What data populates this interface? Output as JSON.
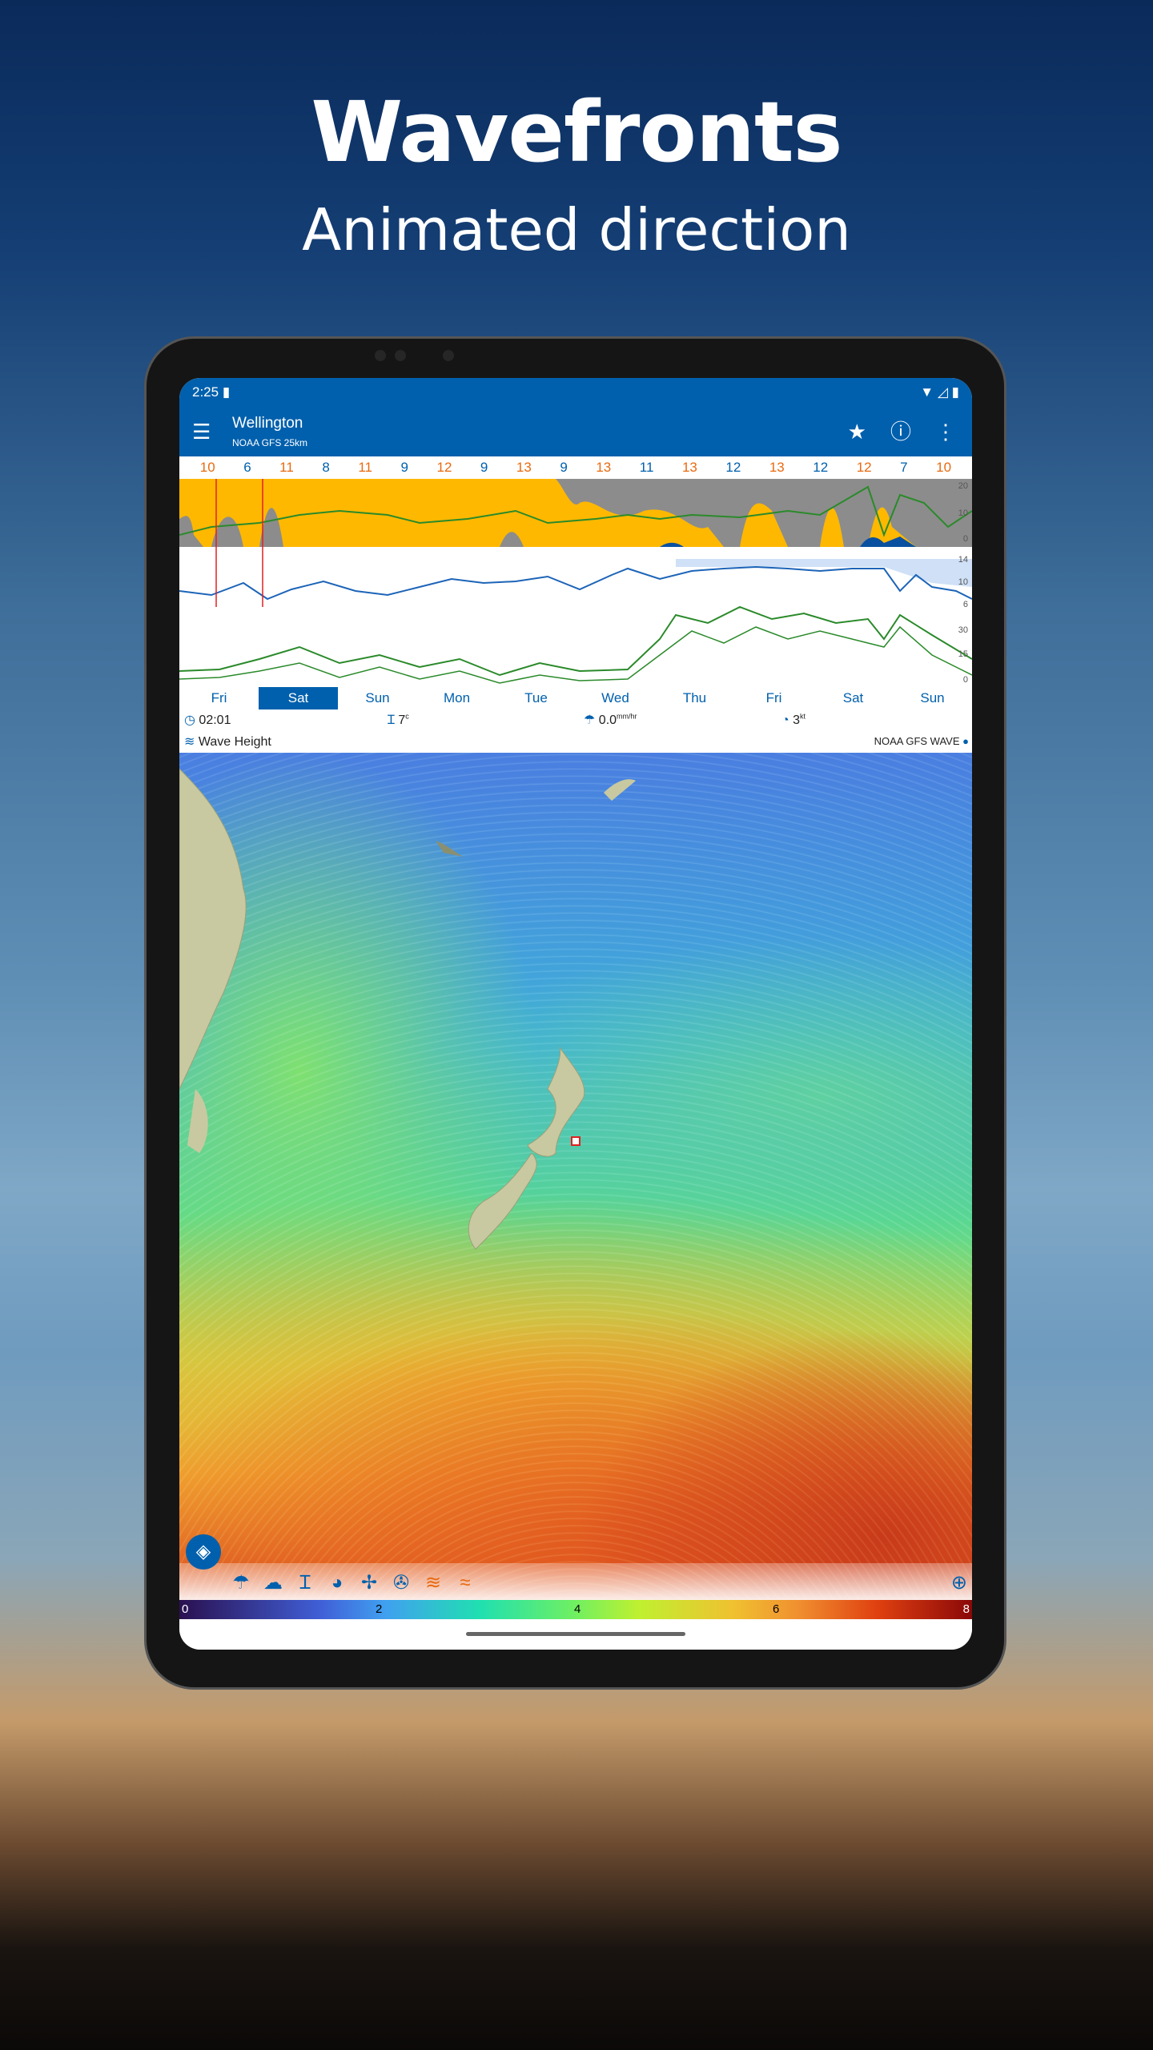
{
  "hero": {
    "title": "Wavefronts",
    "subtitle": "Animated direction"
  },
  "status": {
    "time": "2:25"
  },
  "appbar": {
    "location": "Wellington",
    "model": "NOAA GFS 25km"
  },
  "hours": [
    {
      "v": "10",
      "c": "#e86a10"
    },
    {
      "v": "6",
      "c": "#0160ad"
    },
    {
      "v": "11",
      "c": "#e86a10"
    },
    {
      "v": "8",
      "c": "#0160ad"
    },
    {
      "v": "11",
      "c": "#e86a10"
    },
    {
      "v": "9",
      "c": "#0160ad"
    },
    {
      "v": "12",
      "c": "#e86a10"
    },
    {
      "v": "9",
      "c": "#0160ad"
    },
    {
      "v": "13",
      "c": "#e86a10"
    },
    {
      "v": "9",
      "c": "#0160ad"
    },
    {
      "v": "13",
      "c": "#e86a10"
    },
    {
      "v": "11",
      "c": "#0160ad"
    },
    {
      "v": "13",
      "c": "#e86a10"
    },
    {
      "v": "12",
      "c": "#0160ad"
    },
    {
      "v": "13",
      "c": "#e86a10"
    },
    {
      "v": "12",
      "c": "#0160ad"
    },
    {
      "v": "12",
      "c": "#e86a10"
    },
    {
      "v": "7",
      "c": "#0160ad"
    },
    {
      "v": "10",
      "c": "#e86a10"
    }
  ],
  "chart_axes": {
    "rain": [
      "20",
      "10",
      "0"
    ],
    "temp": [
      "14",
      "10",
      "6"
    ],
    "wind": [
      "30",
      "15",
      "0"
    ]
  },
  "days": [
    "Fri",
    "Sat",
    "Sun",
    "Mon",
    "Tue",
    "Wed",
    "Thu",
    "Fri",
    "Sat",
    "Sun"
  ],
  "selected_day": 1,
  "info": {
    "time": "02:01",
    "temp": "7",
    "temp_unit": "c",
    "rain": "0.0",
    "rain_unit": "mm/hr",
    "wind": "3",
    "wind_unit": "kt"
  },
  "layer": {
    "name": "Wave Height",
    "source": "NOAA GFS WAVE"
  },
  "legend": [
    "0",
    "2",
    "4",
    "6",
    "8"
  ],
  "colors": {
    "brand": "#0160ad",
    "accent": "#e86a10"
  }
}
